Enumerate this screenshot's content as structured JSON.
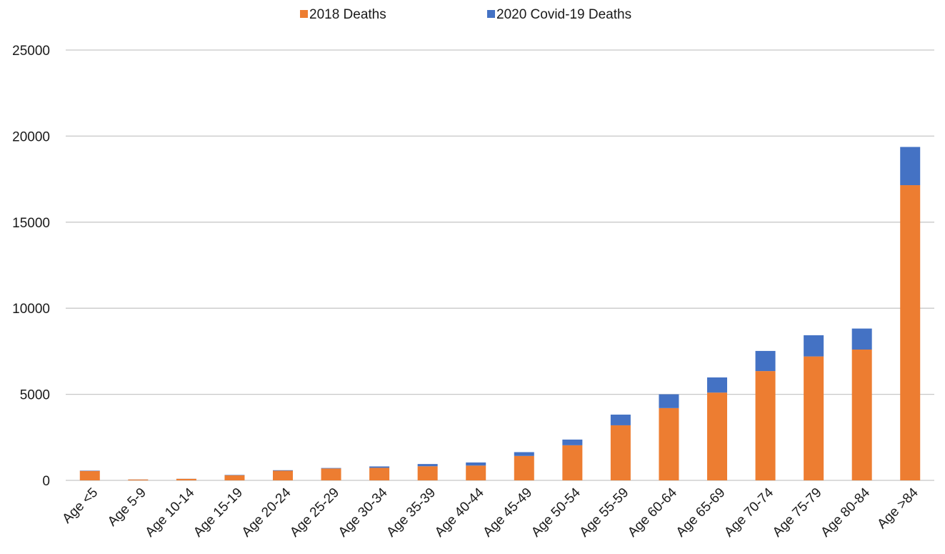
{
  "chart_data": {
    "type": "bar",
    "stacked": true,
    "title": "",
    "xlabel": "",
    "ylabel": "",
    "ylim": [
      0,
      25000
    ],
    "yticks": [
      0,
      5000,
      10000,
      15000,
      20000,
      25000
    ],
    "grid": true,
    "legend_position": "top",
    "categories": [
      "Age <5",
      "Age 5-9",
      "Age 10-14",
      "Age 15-19",
      "Age 20-24",
      "Age 25-29",
      "Age 30-34",
      "Age 35-39",
      "Age 40-44",
      "Age 45-49",
      "Age 50-54",
      "Age 55-59",
      "Age 60-64",
      "Age 65-69",
      "Age 70-74",
      "Age 75-79",
      "Age 80-84",
      "Age >84"
    ],
    "series": [
      {
        "name": "2018 Deaths",
        "color": "#ED7D31",
        "values": [
          550,
          50,
          90,
          300,
          560,
          690,
          730,
          820,
          860,
          1420,
          2040,
          3200,
          4200,
          5100,
          6350,
          7200,
          7600,
          17150
        ]
      },
      {
        "name": "2020 Covid-19 Deaths",
        "color": "#4472C4",
        "values": [
          20,
          5,
          5,
          20,
          30,
          30,
          80,
          130,
          180,
          220,
          330,
          620,
          800,
          880,
          1170,
          1230,
          1220,
          2220
        ]
      }
    ],
    "legend_order": [
      0,
      1
    ]
  }
}
